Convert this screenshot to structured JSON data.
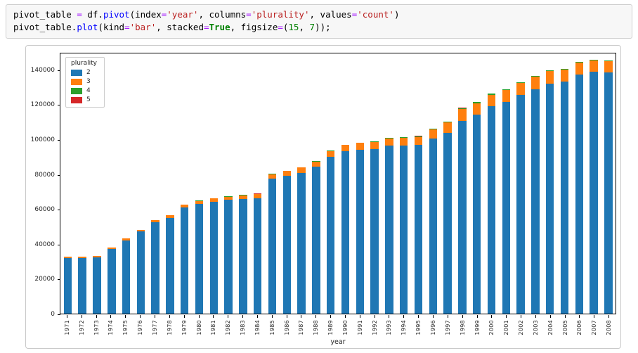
{
  "code_cell": {
    "lines": [
      {
        "tokens": [
          {
            "t": "pivot_table ",
            "c": "plain"
          },
          {
            "t": "=",
            "c": "op"
          },
          {
            "t": " df.",
            "c": "plain"
          },
          {
            "t": "pivot",
            "c": "func"
          },
          {
            "t": "(index",
            "c": "plain"
          },
          {
            "t": "=",
            "c": "op"
          },
          {
            "t": "'year'",
            "c": "str"
          },
          {
            "t": ", columns",
            "c": "plain"
          },
          {
            "t": "=",
            "c": "op"
          },
          {
            "t": "'plurality'",
            "c": "str"
          },
          {
            "t": ", values",
            "c": "plain"
          },
          {
            "t": "=",
            "c": "op"
          },
          {
            "t": "'count'",
            "c": "str"
          },
          {
            "t": ")",
            "c": "plain"
          }
        ]
      },
      {
        "tokens": [
          {
            "t": "pivot_table.",
            "c": "plain"
          },
          {
            "t": "plot",
            "c": "func"
          },
          {
            "t": "(kind",
            "c": "plain"
          },
          {
            "t": "=",
            "c": "op"
          },
          {
            "t": "'bar'",
            "c": "str"
          },
          {
            "t": ", stacked",
            "c": "plain"
          },
          {
            "t": "=",
            "c": "op"
          },
          {
            "t": "True",
            "c": "kw"
          },
          {
            "t": ", figsize",
            "c": "plain"
          },
          {
            "t": "=",
            "c": "op"
          },
          {
            "t": "(",
            "c": "plain"
          },
          {
            "t": "15",
            "c": "num"
          },
          {
            "t": ", ",
            "c": "plain"
          },
          {
            "t": "7",
            "c": "num"
          },
          {
            "t": "));",
            "c": "plain"
          }
        ]
      }
    ]
  },
  "chart_data": {
    "type": "bar",
    "stacked": true,
    "title": "",
    "xlabel": "year",
    "ylabel": "",
    "ylim": [
      0,
      150000
    ],
    "yticks": [
      0,
      20000,
      40000,
      60000,
      80000,
      100000,
      120000,
      140000
    ],
    "grid": false,
    "legend": {
      "title": "plurality",
      "position": "upper left"
    },
    "categories": [
      "1971",
      "1972",
      "1973",
      "1974",
      "1975",
      "1976",
      "1977",
      "1978",
      "1979",
      "1980",
      "1981",
      "1982",
      "1983",
      "1984",
      "1985",
      "1986",
      "1987",
      "1988",
      "1989",
      "1990",
      "1991",
      "1992",
      "1993",
      "1994",
      "1995",
      "1996",
      "1997",
      "1998",
      "1999",
      "2000",
      "2001",
      "2002",
      "2003",
      "2004",
      "2005",
      "2006",
      "2007",
      "2008"
    ],
    "series": [
      {
        "name": "2",
        "color": "#1f77b4",
        "values": [
          32000,
          31700,
          32300,
          37000,
          42000,
          47000,
          52500,
          55000,
          61000,
          63000,
          64200,
          65200,
          65800,
          66300,
          77500,
          79000,
          80800,
          84200,
          89800,
          93000,
          94000,
          94300,
          96300,
          96500,
          96600,
          100500,
          103800,
          110500,
          114000,
          118800,
          121300,
          125300,
          128800,
          132000,
          133200,
          137200,
          138800,
          138300
        ]
      },
      {
        "name": "3",
        "color": "#ff7f0e",
        "values": [
          800,
          800,
          850,
          900,
          1000,
          1100,
          1200,
          1300,
          1500,
          1700,
          1800,
          1900,
          2100,
          2300,
          2500,
          2700,
          2900,
          3100,
          3400,
          3600,
          3800,
          4000,
          4200,
          4500,
          4800,
          5200,
          5900,
          6800,
          6700,
          6700,
          6800,
          6900,
          7100,
          7000,
          6800,
          6700,
          6500,
          6300
        ]
      },
      {
        "name": "4",
        "color": "#2ca02c",
        "values": [
          60,
          60,
          60,
          70,
          70,
          80,
          90,
          90,
          100,
          110,
          120,
          130,
          140,
          150,
          170,
          180,
          200,
          220,
          250,
          270,
          290,
          310,
          330,
          360,
          390,
          430,
          510,
          600,
          570,
          550,
          540,
          520,
          500,
          460,
          430,
          420,
          400,
          380
        ]
      },
      {
        "name": "5",
        "color": "#d62728",
        "values": [
          10,
          10,
          10,
          10,
          10,
          10,
          10,
          15,
          15,
          15,
          20,
          20,
          20,
          25,
          25,
          30,
          30,
          35,
          40,
          40,
          45,
          50,
          55,
          60,
          65,
          70,
          80,
          85,
          80,
          75,
          70,
          65,
          60,
          55,
          50,
          45,
          40,
          35
        ]
      }
    ]
  }
}
